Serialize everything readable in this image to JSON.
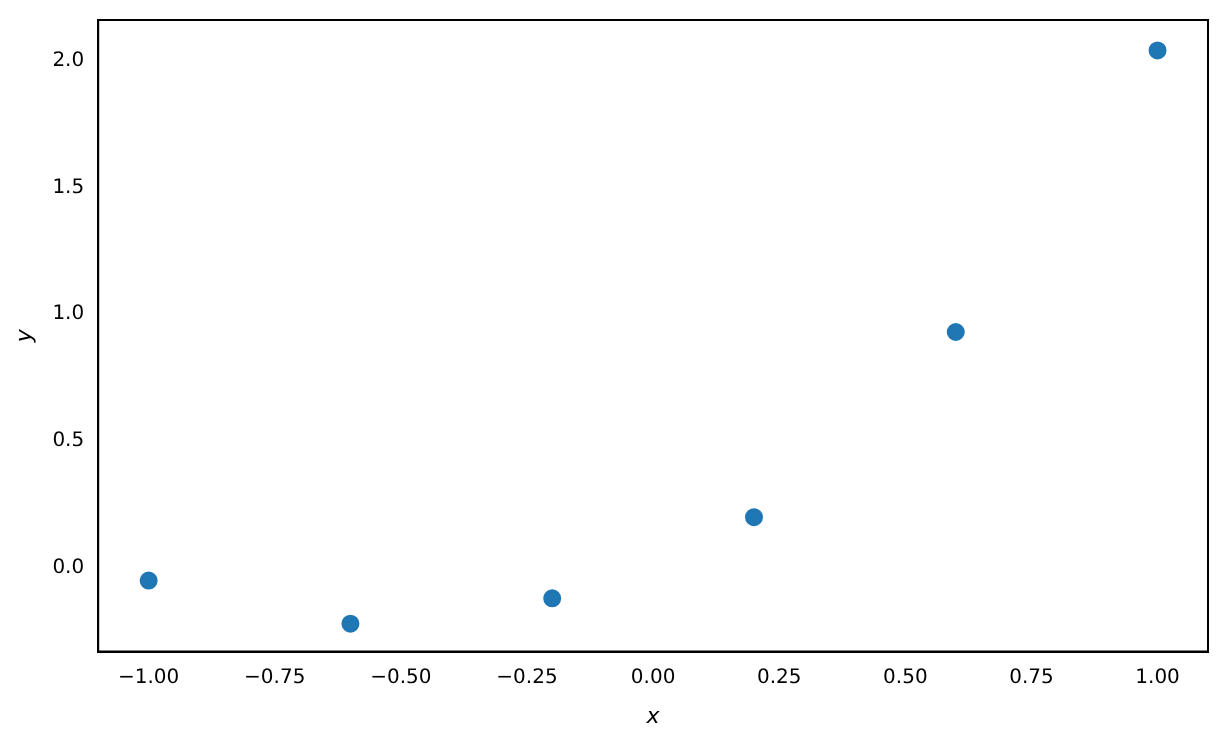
{
  "chart_data": {
    "type": "scatter",
    "xlabel": "x",
    "ylabel": "y",
    "x": [
      -1.0,
      -0.6,
      -0.2,
      0.2,
      0.6,
      1.0
    ],
    "series": [
      {
        "color": "#1f77b4",
        "values": [
          -0.05,
          -0.22,
          -0.12,
          0.2,
          0.93,
          2.04
        ]
      }
    ],
    "xlim": [
      -1.1,
      1.1
    ],
    "xticks": [
      {
        "value": -1,
        "label": "−1.00"
      },
      {
        "value": -0.75,
        "label": "−0.75"
      },
      {
        "value": -0.5,
        "label": "−0.50"
      },
      {
        "value": -0.25,
        "label": "−0.25"
      },
      {
        "value": 0,
        "label": "0.00"
      },
      {
        "value": 0.25,
        "label": "0.25"
      },
      {
        "value": 0.5,
        "label": "0.50"
      },
      {
        "value": 0.75,
        "label": "0.75"
      },
      {
        "value": 1,
        "label": "1.00"
      }
    ],
    "ylim": [
      -0.33,
      2.16
    ],
    "yticks": [
      {
        "value": 0,
        "label": "0.0"
      },
      {
        "value": 0.5,
        "label": "0.5"
      },
      {
        "value": 1,
        "label": "1.0"
      },
      {
        "value": 1.5,
        "label": "1.5"
      },
      {
        "value": 2,
        "label": "2.0"
      }
    ],
    "grid": false,
    "legend": false,
    "marker": "circle"
  }
}
